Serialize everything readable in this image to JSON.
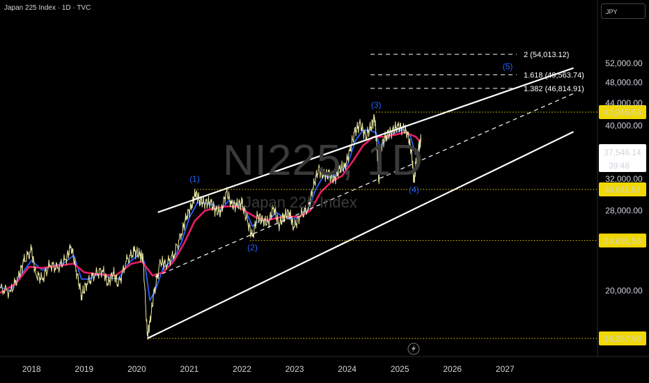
{
  "header": {
    "title": "Japan 225 Index · 1D · TVC"
  },
  "watermark": {
    "symbol": "NI225, 1D",
    "name": "Japan 225 Index"
  },
  "currency": "JPY",
  "colors": {
    "background": "#000000",
    "price": "#e8e6a0",
    "ma_fast": "#2962ff",
    "ma_slow": "#e91e63",
    "level": "#f0d800",
    "channel": "#ffffff",
    "wave_label": "#2962ff"
  },
  "price_badge": {
    "price": "37,546.14",
    "countdown": "39:48"
  },
  "icons": [
    "lightning-icon"
  ],
  "chart_data": {
    "type": "line",
    "title": "",
    "xlabel": "",
    "ylabel": "",
    "x_range": [
      2017.4,
      2028.85
    ],
    "ylim": [
      14400,
      55000
    ],
    "y_scale": "log",
    "y_ticks": [
      {
        "value": 52000,
        "label": "52,000.00"
      },
      {
        "value": 48000,
        "label": "48,000.00"
      },
      {
        "value": 44000,
        "label": "44,000.00"
      },
      {
        "value": 40000,
        "label": "40,000.00"
      },
      {
        "value": 32000,
        "label": "32,000.00"
      },
      {
        "value": 28000,
        "label": "28,000.00"
      },
      {
        "value": 20000,
        "label": "20,000.00"
      }
    ],
    "x_ticks": [
      {
        "value": 2018,
        "label": "2018"
      },
      {
        "value": 2019,
        "label": "2019"
      },
      {
        "value": 2020,
        "label": "2020"
      },
      {
        "value": 2021,
        "label": "2021"
      },
      {
        "value": 2022,
        "label": "2022"
      },
      {
        "value": 2023,
        "label": "2023"
      },
      {
        "value": 2024,
        "label": "2024"
      },
      {
        "value": 2025,
        "label": "2025"
      },
      {
        "value": 2026,
        "label": "2026"
      },
      {
        "value": 2027,
        "label": "2027"
      }
    ],
    "series": [
      {
        "name": "",
        "role": "price",
        "points": [
          [
            2017.4,
            20200
          ],
          [
            2017.6,
            19900
          ],
          [
            2017.75,
            21200
          ],
          [
            2017.85,
            22600
          ],
          [
            2018.0,
            23700
          ],
          [
            2018.08,
            21400
          ],
          [
            2018.2,
            21000
          ],
          [
            2018.35,
            22300
          ],
          [
            2018.5,
            22000
          ],
          [
            2018.65,
            22800
          ],
          [
            2018.75,
            24100
          ],
          [
            2018.85,
            21800
          ],
          [
            2018.95,
            19600
          ],
          [
            2019.05,
            20600
          ],
          [
            2019.2,
            21400
          ],
          [
            2019.35,
            21800
          ],
          [
            2019.45,
            20600
          ],
          [
            2019.55,
            21600
          ],
          [
            2019.65,
            20500
          ],
          [
            2019.8,
            22600
          ],
          [
            2019.95,
            23600
          ],
          [
            2020.05,
            23300
          ],
          [
            2020.12,
            23000
          ],
          [
            2020.2,
            16550
          ],
          [
            2020.25,
            17500
          ],
          [
            2020.33,
            19900
          ],
          [
            2020.45,
            22600
          ],
          [
            2020.55,
            22300
          ],
          [
            2020.7,
            23200
          ],
          [
            2020.85,
            25400
          ],
          [
            2020.95,
            27400
          ],
          [
            2021.05,
            28700
          ],
          [
            2021.12,
            30200
          ],
          [
            2021.2,
            29200
          ],
          [
            2021.3,
            28900
          ],
          [
            2021.4,
            29000
          ],
          [
            2021.5,
            28000
          ],
          [
            2021.6,
            27800
          ],
          [
            2021.7,
            30300
          ],
          [
            2021.8,
            28800
          ],
          [
            2021.9,
            28600
          ],
          [
            2022.0,
            28900
          ],
          [
            2022.1,
            26800
          ],
          [
            2022.2,
            25100
          ],
          [
            2022.3,
            27500
          ],
          [
            2022.4,
            26800
          ],
          [
            2022.5,
            26600
          ],
          [
            2022.6,
            28400
          ],
          [
            2022.7,
            26400
          ],
          [
            2022.8,
            27400
          ],
          [
            2022.9,
            27800
          ],
          [
            2022.98,
            26100
          ],
          [
            2023.1,
            27400
          ],
          [
            2023.25,
            28200
          ],
          [
            2023.35,
            30800
          ],
          [
            2023.45,
            33300
          ],
          [
            2023.55,
            32500
          ],
          [
            2023.65,
            32600
          ],
          [
            2023.75,
            31800
          ],
          [
            2023.85,
            33400
          ],
          [
            2023.95,
            33600
          ],
          [
            2024.05,
            36000
          ],
          [
            2024.15,
            39100
          ],
          [
            2024.25,
            40300
          ],
          [
            2024.35,
            38200
          ],
          [
            2024.45,
            39800
          ],
          [
            2024.52,
            41500
          ],
          [
            2024.57,
            36000
          ],
          [
            2024.6,
            31500
          ],
          [
            2024.65,
            36800
          ],
          [
            2024.75,
            38500
          ],
          [
            2024.85,
            39000
          ],
          [
            2024.95,
            39900
          ],
          [
            2025.05,
            39600
          ],
          [
            2025.15,
            38700
          ],
          [
            2025.22,
            36000
          ],
          [
            2025.27,
            31500
          ],
          [
            2025.3,
            33800
          ],
          [
            2025.36,
            36400
          ],
          [
            2025.4,
            37546
          ]
        ]
      },
      {
        "name": "",
        "role": "ma_fast",
        "points": [
          [
            2017.4,
            20300
          ],
          [
            2017.6,
            20000
          ],
          [
            2017.8,
            21400
          ],
          [
            2018.0,
            22700
          ],
          [
            2018.2,
            21800
          ],
          [
            2018.4,
            22200
          ],
          [
            2018.6,
            22400
          ],
          [
            2018.8,
            23200
          ],
          [
            2018.95,
            21000
          ],
          [
            2019.1,
            21000
          ],
          [
            2019.3,
            21500
          ],
          [
            2019.5,
            21100
          ],
          [
            2019.65,
            21000
          ],
          [
            2019.85,
            22500
          ],
          [
            2020.05,
            23300
          ],
          [
            2020.15,
            22500
          ],
          [
            2020.25,
            19200
          ],
          [
            2020.35,
            20000
          ],
          [
            2020.5,
            22000
          ],
          [
            2020.7,
            22800
          ],
          [
            2020.85,
            24500
          ],
          [
            2021.0,
            27200
          ],
          [
            2021.15,
            28900
          ],
          [
            2021.3,
            28900
          ],
          [
            2021.45,
            28700
          ],
          [
            2021.6,
            28100
          ],
          [
            2021.75,
            29200
          ],
          [
            2021.9,
            28800
          ],
          [
            2022.05,
            28300
          ],
          [
            2022.2,
            26200
          ],
          [
            2022.35,
            27000
          ],
          [
            2022.5,
            26800
          ],
          [
            2022.65,
            27800
          ],
          [
            2022.8,
            27200
          ],
          [
            2022.95,
            27000
          ],
          [
            2023.1,
            27300
          ],
          [
            2023.25,
            28000
          ],
          [
            2023.4,
            30600
          ],
          [
            2023.55,
            32400
          ],
          [
            2023.7,
            32200
          ],
          [
            2023.85,
            32900
          ],
          [
            2024.0,
            33800
          ],
          [
            2024.15,
            37500
          ],
          [
            2024.3,
            39300
          ],
          [
            2024.45,
            39200
          ],
          [
            2024.55,
            38800
          ],
          [
            2024.62,
            36600
          ],
          [
            2024.75,
            37900
          ],
          [
            2024.9,
            38800
          ],
          [
            2025.05,
            39400
          ],
          [
            2025.2,
            38300
          ],
          [
            2025.3,
            35500
          ],
          [
            2025.4,
            36900
          ]
        ]
      },
      {
        "name": "",
        "role": "ma_slow",
        "points": [
          [
            2017.4,
            19800
          ],
          [
            2017.7,
            20600
          ],
          [
            2017.95,
            22100
          ],
          [
            2018.2,
            22000
          ],
          [
            2018.5,
            22200
          ],
          [
            2018.8,
            22400
          ],
          [
            2019.0,
            21600
          ],
          [
            2019.3,
            21400
          ],
          [
            2019.6,
            21300
          ],
          [
            2019.9,
            22400
          ],
          [
            2020.1,
            22600
          ],
          [
            2020.3,
            21300
          ],
          [
            2020.5,
            21600
          ],
          [
            2020.7,
            22600
          ],
          [
            2020.9,
            24400
          ],
          [
            2021.1,
            26800
          ],
          [
            2021.3,
            28000
          ],
          [
            2021.5,
            28300
          ],
          [
            2021.7,
            28500
          ],
          [
            2021.9,
            28500
          ],
          [
            2022.1,
            27800
          ],
          [
            2022.3,
            27100
          ],
          [
            2022.5,
            26900
          ],
          [
            2022.7,
            27200
          ],
          [
            2022.9,
            27300
          ],
          [
            2023.1,
            27300
          ],
          [
            2023.3,
            28000
          ],
          [
            2023.5,
            30300
          ],
          [
            2023.7,
            31600
          ],
          [
            2023.9,
            32400
          ],
          [
            2024.1,
            34400
          ],
          [
            2024.3,
            36800
          ],
          [
            2024.5,
            38200
          ],
          [
            2024.7,
            38200
          ],
          [
            2024.9,
            38500
          ],
          [
            2025.1,
            38900
          ],
          [
            2025.3,
            38200
          ],
          [
            2025.4,
            37300
          ]
        ]
      }
    ],
    "channel": {
      "upper": [
        [
          2020.4,
          27800
        ],
        [
          2028.3,
          51000
        ]
      ],
      "middle": [
        [
          2020.35,
          21200
        ],
        [
          2028.3,
          45800
        ]
      ],
      "lower": [
        [
          2020.2,
          16357.9
        ],
        [
          2028.3,
          39000
        ]
      ]
    },
    "levels": [
      {
        "value": 42365.53,
        "label": "42,365.53",
        "from": 2024.55
      },
      {
        "value": 30611.57,
        "label": "30,611.57",
        "from": 2021.1
      },
      {
        "value": 24691.53,
        "label": "24,691.53",
        "from": 2022.15
      },
      {
        "value": 16357.9,
        "label": "16,357.90",
        "from": 2020.2
      }
    ],
    "fib_levels": [
      {
        "value": 54013.12,
        "label": "2 (54,013.12)"
      },
      {
        "value": 49563.74,
        "label": "1.618 (49,563.74)"
      },
      {
        "value": 46814.91,
        "label": "1.382 (46,814.91)"
      }
    ],
    "wave_labels": [
      {
        "label": "(1)",
        "x": 2021.1,
        "y": 31600
      },
      {
        "label": "(2)",
        "x": 2022.2,
        "y": 23700
      },
      {
        "label": "(3)",
        "x": 2024.55,
        "y": 43100
      },
      {
        "label": "(4)",
        "x": 2025.27,
        "y": 30200
      },
      {
        "label": "(5)",
        "x": 2027.05,
        "y": 50700
      }
    ]
  }
}
